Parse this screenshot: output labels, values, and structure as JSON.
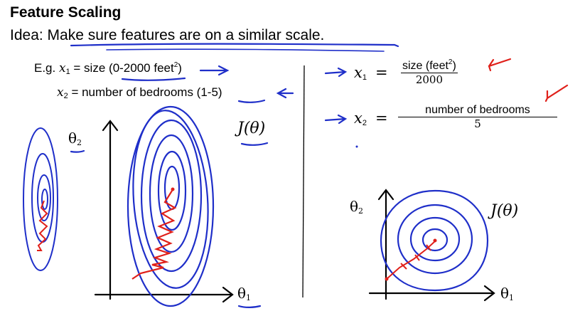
{
  "title": "Feature Scaling",
  "idea": {
    "prefix": "Idea: ",
    "text": "Make sure features are on a similar scale."
  },
  "example1": {
    "lead": "E.g. ",
    "var": "x",
    "sub": "1",
    "eq": " = size (",
    "range": "0-2000",
    "unit": " feet",
    "sup": "2",
    "close": ")"
  },
  "example2": {
    "var": "x",
    "sub": "2",
    "eq": " = number of bedrooms (",
    "range": "1-5",
    "close": ")"
  },
  "left_plot": {
    "theta2_label": "θ",
    "theta2_sub": "2",
    "j_label": "J(θ)",
    "theta1_label": "θ",
    "theta1_sub": "1"
  },
  "formula1": {
    "var": "x",
    "sub": "1",
    "eq": "=",
    "numerator": "size (feet",
    "numerator_sup": "2",
    "numerator_close": ")",
    "denominator": "2000"
  },
  "formula2": {
    "var": "x",
    "sub": "2",
    "eq": "=",
    "numerator": "number of bedrooms",
    "denominator": "5"
  },
  "right_plot": {
    "theta2_label": "θ",
    "theta2_sub": "2",
    "j_label": "J(θ)",
    "theta1_label": "θ",
    "theta1_sub": "1"
  },
  "colors": {
    "ink": "#000000",
    "pen_blue": "#1f2fc9",
    "pen_red": "#e0201a"
  }
}
